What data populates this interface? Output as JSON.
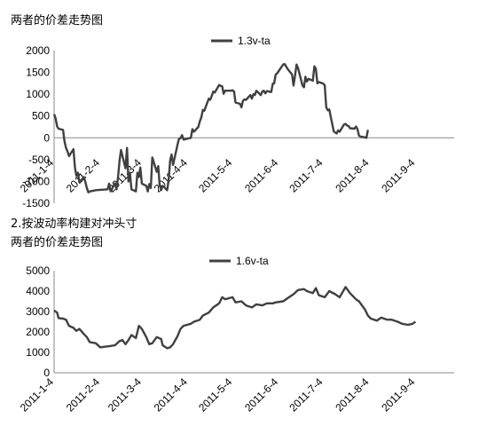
{
  "headings": {
    "chart1_title": "两者的价差走势图",
    "section2_caption": "2.按波动率构建对冲头寸",
    "chart2_title": "两者的价差走势图"
  },
  "chart_data": [
    {
      "type": "line",
      "title": "两者的价差走势图",
      "legend": {
        "entries": [
          "1.3v-ta"
        ],
        "placement": "top-center"
      },
      "ylim": [
        -1500,
        2000
      ],
      "yticks": [
        -1500,
        -1000,
        -500,
        0,
        500,
        1000,
        1500,
        2000
      ],
      "xlim": [
        "2011-01-04",
        "2011-09-30"
      ],
      "xticks": [
        "2011-1-4",
        "2011-2-4",
        "2011-3-4",
        "2011-4-4",
        "2011-5-4",
        "2011-6-4",
        "2011-7-4",
        "2011-8-4",
        "2011-9-4"
      ],
      "xtick_dates": [
        "2011-01-04",
        "2011-02-04",
        "2011-03-04",
        "2011-04-04",
        "2011-05-04",
        "2011-06-04",
        "2011-07-04",
        "2011-08-04",
        "2011-09-04"
      ],
      "series": [
        {
          "name": "1.3v-ta",
          "color": "#404040",
          "points": [
            [
              "2011-01-04",
              540
            ],
            [
              "2011-01-05",
              450
            ],
            [
              "2011-01-06",
              260
            ],
            [
              "2011-01-07",
              210
            ],
            [
              "2011-01-10",
              180
            ],
            [
              "2011-01-11",
              -80
            ],
            [
              "2011-01-12",
              -230
            ],
            [
              "2011-01-13",
              -310
            ],
            [
              "2011-01-14",
              -420
            ],
            [
              "2011-01-17",
              -260
            ],
            [
              "2011-01-18",
              -680
            ],
            [
              "2011-01-19",
              -870
            ],
            [
              "2011-01-20",
              -800
            ],
            [
              "2011-01-21",
              -1020
            ],
            [
              "2011-01-24",
              -900
            ],
            [
              "2011-01-25",
              -1010
            ],
            [
              "2011-01-26",
              -1150
            ],
            [
              "2011-01-27",
              -1250
            ],
            [
              "2011-01-28",
              -1230
            ],
            [
              "2011-02-01",
              -1200
            ],
            [
              "2011-02-09",
              -1180
            ],
            [
              "2011-02-10",
              -1050
            ],
            [
              "2011-02-11",
              -1230
            ],
            [
              "2011-02-14",
              -1040
            ],
            [
              "2011-02-15",
              -1180
            ],
            [
              "2011-02-16",
              -900
            ],
            [
              "2011-02-17",
              -520
            ],
            [
              "2011-02-18",
              -280
            ],
            [
              "2011-02-21",
              -700
            ],
            [
              "2011-02-22",
              -230
            ],
            [
              "2011-02-23",
              -1000
            ],
            [
              "2011-02-24",
              -800
            ],
            [
              "2011-02-25",
              -1180
            ],
            [
              "2011-02-28",
              -1230
            ],
            [
              "2011-03-01",
              -800
            ],
            [
              "2011-03-02",
              -900
            ],
            [
              "2011-03-03",
              -680
            ],
            [
              "2011-03-04",
              -1050
            ],
            [
              "2011-03-07",
              -1100
            ],
            [
              "2011-03-08",
              -1230
            ],
            [
              "2011-03-09",
              -1060
            ],
            [
              "2011-03-10",
              -1150
            ],
            [
              "2011-03-11",
              -450
            ],
            [
              "2011-03-14",
              -780
            ],
            [
              "2011-03-15",
              -650
            ],
            [
              "2011-03-16",
              -1080
            ],
            [
              "2011-03-17",
              -1200
            ],
            [
              "2011-03-18",
              -1100
            ],
            [
              "2011-03-21",
              -1200
            ],
            [
              "2011-03-22",
              -980
            ],
            [
              "2011-03-23",
              -520
            ],
            [
              "2011-03-24",
              -380
            ],
            [
              "2011-03-25",
              -620
            ],
            [
              "2011-03-28",
              -150
            ],
            [
              "2011-03-29",
              -20
            ],
            [
              "2011-03-30",
              -10
            ],
            [
              "2011-03-31",
              60
            ],
            [
              "2011-04-01",
              -40
            ],
            [
              "2011-04-06",
              0
            ],
            [
              "2011-04-07",
              200
            ],
            [
              "2011-04-08",
              140
            ],
            [
              "2011-04-11",
              250
            ],
            [
              "2011-04-12",
              380
            ],
            [
              "2011-04-13",
              470
            ],
            [
              "2011-04-14",
              640
            ],
            [
              "2011-04-15",
              620
            ],
            [
              "2011-04-18",
              900
            ],
            [
              "2011-04-19",
              870
            ],
            [
              "2011-04-20",
              960
            ],
            [
              "2011-04-21",
              1060
            ],
            [
              "2011-04-22",
              1040
            ],
            [
              "2011-04-25",
              1210
            ],
            [
              "2011-04-26",
              1190
            ],
            [
              "2011-04-27",
              1180
            ],
            [
              "2011-04-28",
              1010
            ],
            [
              "2011-04-29",
              1080
            ],
            [
              "2011-05-03",
              1080
            ],
            [
              "2011-05-04",
              1090
            ],
            [
              "2011-05-05",
              1060
            ],
            [
              "2011-05-06",
              810
            ],
            [
              "2011-05-09",
              780
            ],
            [
              "2011-05-10",
              700
            ],
            [
              "2011-05-11",
              850
            ],
            [
              "2011-05-12",
              880
            ],
            [
              "2011-05-13",
              870
            ],
            [
              "2011-05-16",
              980
            ],
            [
              "2011-05-17",
              900
            ],
            [
              "2011-05-18",
              1000
            ],
            [
              "2011-05-19",
              980
            ],
            [
              "2011-05-20",
              1080
            ],
            [
              "2011-05-23",
              980
            ],
            [
              "2011-05-24",
              1060
            ],
            [
              "2011-05-25",
              1080
            ],
            [
              "2011-05-26",
              1020
            ],
            [
              "2011-05-27",
              1070
            ],
            [
              "2011-05-30",
              1050
            ],
            [
              "2011-05-31",
              1240
            ],
            [
              "2011-06-01",
              1250
            ],
            [
              "2011-06-02",
              1450
            ],
            [
              "2011-06-03",
              1480
            ],
            [
              "2011-06-07",
              1680
            ],
            [
              "2011-06-08",
              1690
            ],
            [
              "2011-06-09",
              1640
            ],
            [
              "2011-06-10",
              1580
            ],
            [
              "2011-06-13",
              1450
            ],
            [
              "2011-06-14",
              1200
            ],
            [
              "2011-06-15",
              1420
            ],
            [
              "2011-06-16",
              1680
            ],
            [
              "2011-06-17",
              1600
            ],
            [
              "2011-06-20",
              1200
            ],
            [
              "2011-06-21",
              1160
            ],
            [
              "2011-06-22",
              1400
            ],
            [
              "2011-06-23",
              1290
            ],
            [
              "2011-06-24",
              1350
            ],
            [
              "2011-06-27",
              1310
            ],
            [
              "2011-06-28",
              1640
            ],
            [
              "2011-06-29",
              1580
            ],
            [
              "2011-06-30",
              1250
            ],
            [
              "2011-07-01",
              1280
            ],
            [
              "2011-07-04",
              1240
            ],
            [
              "2011-07-05",
              1200
            ],
            [
              "2011-07-06",
              700
            ],
            [
              "2011-07-07",
              630
            ],
            [
              "2011-07-08",
              650
            ],
            [
              "2011-07-11",
              150
            ],
            [
              "2011-07-12",
              120
            ],
            [
              "2011-07-13",
              100
            ],
            [
              "2011-07-14",
              170
            ],
            [
              "2011-07-15",
              140
            ],
            [
              "2011-07-18",
              310
            ],
            [
              "2011-07-19",
              320
            ],
            [
              "2011-07-20",
              280
            ],
            [
              "2011-07-21",
              270
            ],
            [
              "2011-07-22",
              220
            ],
            [
              "2011-07-25",
              210
            ],
            [
              "2011-07-26",
              260
            ],
            [
              "2011-07-27",
              200
            ],
            [
              "2011-07-28",
              50
            ],
            [
              "2011-07-29",
              30
            ],
            [
              "2011-08-01",
              10
            ],
            [
              "2011-08-02",
              0
            ],
            [
              "2011-08-03",
              180
            ]
          ]
        }
      ]
    },
    {
      "type": "line",
      "title": "两者的价差走势图",
      "legend": {
        "entries": [
          "1.6v-ta"
        ],
        "placement": "top-center"
      },
      "ylim": [
        0,
        5000
      ],
      "yticks": [
        0,
        1000,
        2000,
        3000,
        4000,
        5000
      ],
      "xlim": [
        "2011-01-04",
        "2011-09-30"
      ],
      "xticks": [
        "2011-1-4",
        "2011-2-4",
        "2011-3-4",
        "2011-4-4",
        "2011-5-4",
        "2011-6-4",
        "2011-7-4",
        "2011-8-4",
        "2011-9-4"
      ],
      "xtick_dates": [
        "2011-01-04",
        "2011-02-04",
        "2011-03-04",
        "2011-04-04",
        "2011-05-04",
        "2011-06-04",
        "2011-07-04",
        "2011-08-04",
        "2011-09-04"
      ],
      "series": [
        {
          "name": "1.6v-ta",
          "color": "#404040",
          "points": [
            [
              "2011-01-04",
              3050
            ],
            [
              "2011-01-06",
              2950
            ],
            [
              "2011-01-07",
              2680
            ],
            [
              "2011-01-10",
              2650
            ],
            [
              "2011-01-12",
              2600
            ],
            [
              "2011-01-14",
              2300
            ],
            [
              "2011-01-17",
              2200
            ],
            [
              "2011-01-19",
              2050
            ],
            [
              "2011-01-21",
              2150
            ],
            [
              "2011-01-24",
              1900
            ],
            [
              "2011-01-26",
              1750
            ],
            [
              "2011-01-28",
              1500
            ],
            [
              "2011-02-01",
              1450
            ],
            [
              "2011-02-04",
              1250
            ],
            [
              "2011-02-10",
              1300
            ],
            [
              "2011-02-14",
              1350
            ],
            [
              "2011-02-17",
              1550
            ],
            [
              "2011-02-19",
              1600
            ],
            [
              "2011-02-21",
              1400
            ],
            [
              "2011-02-23",
              1600
            ],
            [
              "2011-02-25",
              1850
            ],
            [
              "2011-02-28",
              1700
            ],
            [
              "2011-03-02",
              2300
            ],
            [
              "2011-03-04",
              2150
            ],
            [
              "2011-03-07",
              1750
            ],
            [
              "2011-03-09",
              1400
            ],
            [
              "2011-03-11",
              1450
            ],
            [
              "2011-03-14",
              1750
            ],
            [
              "2011-03-17",
              1650
            ],
            [
              "2011-03-18",
              1350
            ],
            [
              "2011-03-21",
              1200
            ],
            [
              "2011-03-23",
              1250
            ],
            [
              "2011-03-25",
              1400
            ],
            [
              "2011-03-28",
              1800
            ],
            [
              "2011-03-30",
              2150
            ],
            [
              "2011-04-01",
              2300
            ],
            [
              "2011-04-06",
              2400
            ],
            [
              "2011-04-08",
              2500
            ],
            [
              "2011-04-12",
              2600
            ],
            [
              "2011-04-14",
              2800
            ],
            [
              "2011-04-18",
              2950
            ],
            [
              "2011-04-21",
              3200
            ],
            [
              "2011-04-25",
              3400
            ],
            [
              "2011-04-27",
              3700
            ],
            [
              "2011-04-29",
              3600
            ],
            [
              "2011-05-04",
              3700
            ],
            [
              "2011-05-06",
              3450
            ],
            [
              "2011-05-10",
              3500
            ],
            [
              "2011-05-13",
              3300
            ],
            [
              "2011-05-17",
              3200
            ],
            [
              "2011-05-20",
              3350
            ],
            [
              "2011-05-24",
              3300
            ],
            [
              "2011-05-27",
              3400
            ],
            [
              "2011-05-31",
              3400
            ],
            [
              "2011-06-02",
              3450
            ],
            [
              "2011-06-07",
              3500
            ],
            [
              "2011-06-10",
              3650
            ],
            [
              "2011-06-14",
              3850
            ],
            [
              "2011-06-17",
              4050
            ],
            [
              "2011-06-21",
              4100
            ],
            [
              "2011-06-23",
              4000
            ],
            [
              "2011-06-27",
              3900
            ],
            [
              "2011-06-29",
              4150
            ],
            [
              "2011-07-01",
              3800
            ],
            [
              "2011-07-05",
              3700
            ],
            [
              "2011-07-08",
              4000
            ],
            [
              "2011-07-12",
              3850
            ],
            [
              "2011-07-15",
              3700
            ],
            [
              "2011-07-19",
              4200
            ],
            [
              "2011-07-22",
              3900
            ],
            [
              "2011-07-26",
              3600
            ],
            [
              "2011-07-28",
              3500
            ],
            [
              "2011-08-01",
              3100
            ],
            [
              "2011-08-03",
              2800
            ],
            [
              "2011-08-05",
              2650
            ],
            [
              "2011-08-09",
              2550
            ],
            [
              "2011-08-12",
              2700
            ],
            [
              "2011-08-16",
              2600
            ],
            [
              "2011-08-19",
              2600
            ],
            [
              "2011-08-23",
              2500
            ],
            [
              "2011-08-26",
              2400
            ],
            [
              "2011-08-30",
              2350
            ],
            [
              "2011-09-02",
              2400
            ],
            [
              "2011-09-04",
              2500
            ]
          ]
        }
      ]
    }
  ]
}
